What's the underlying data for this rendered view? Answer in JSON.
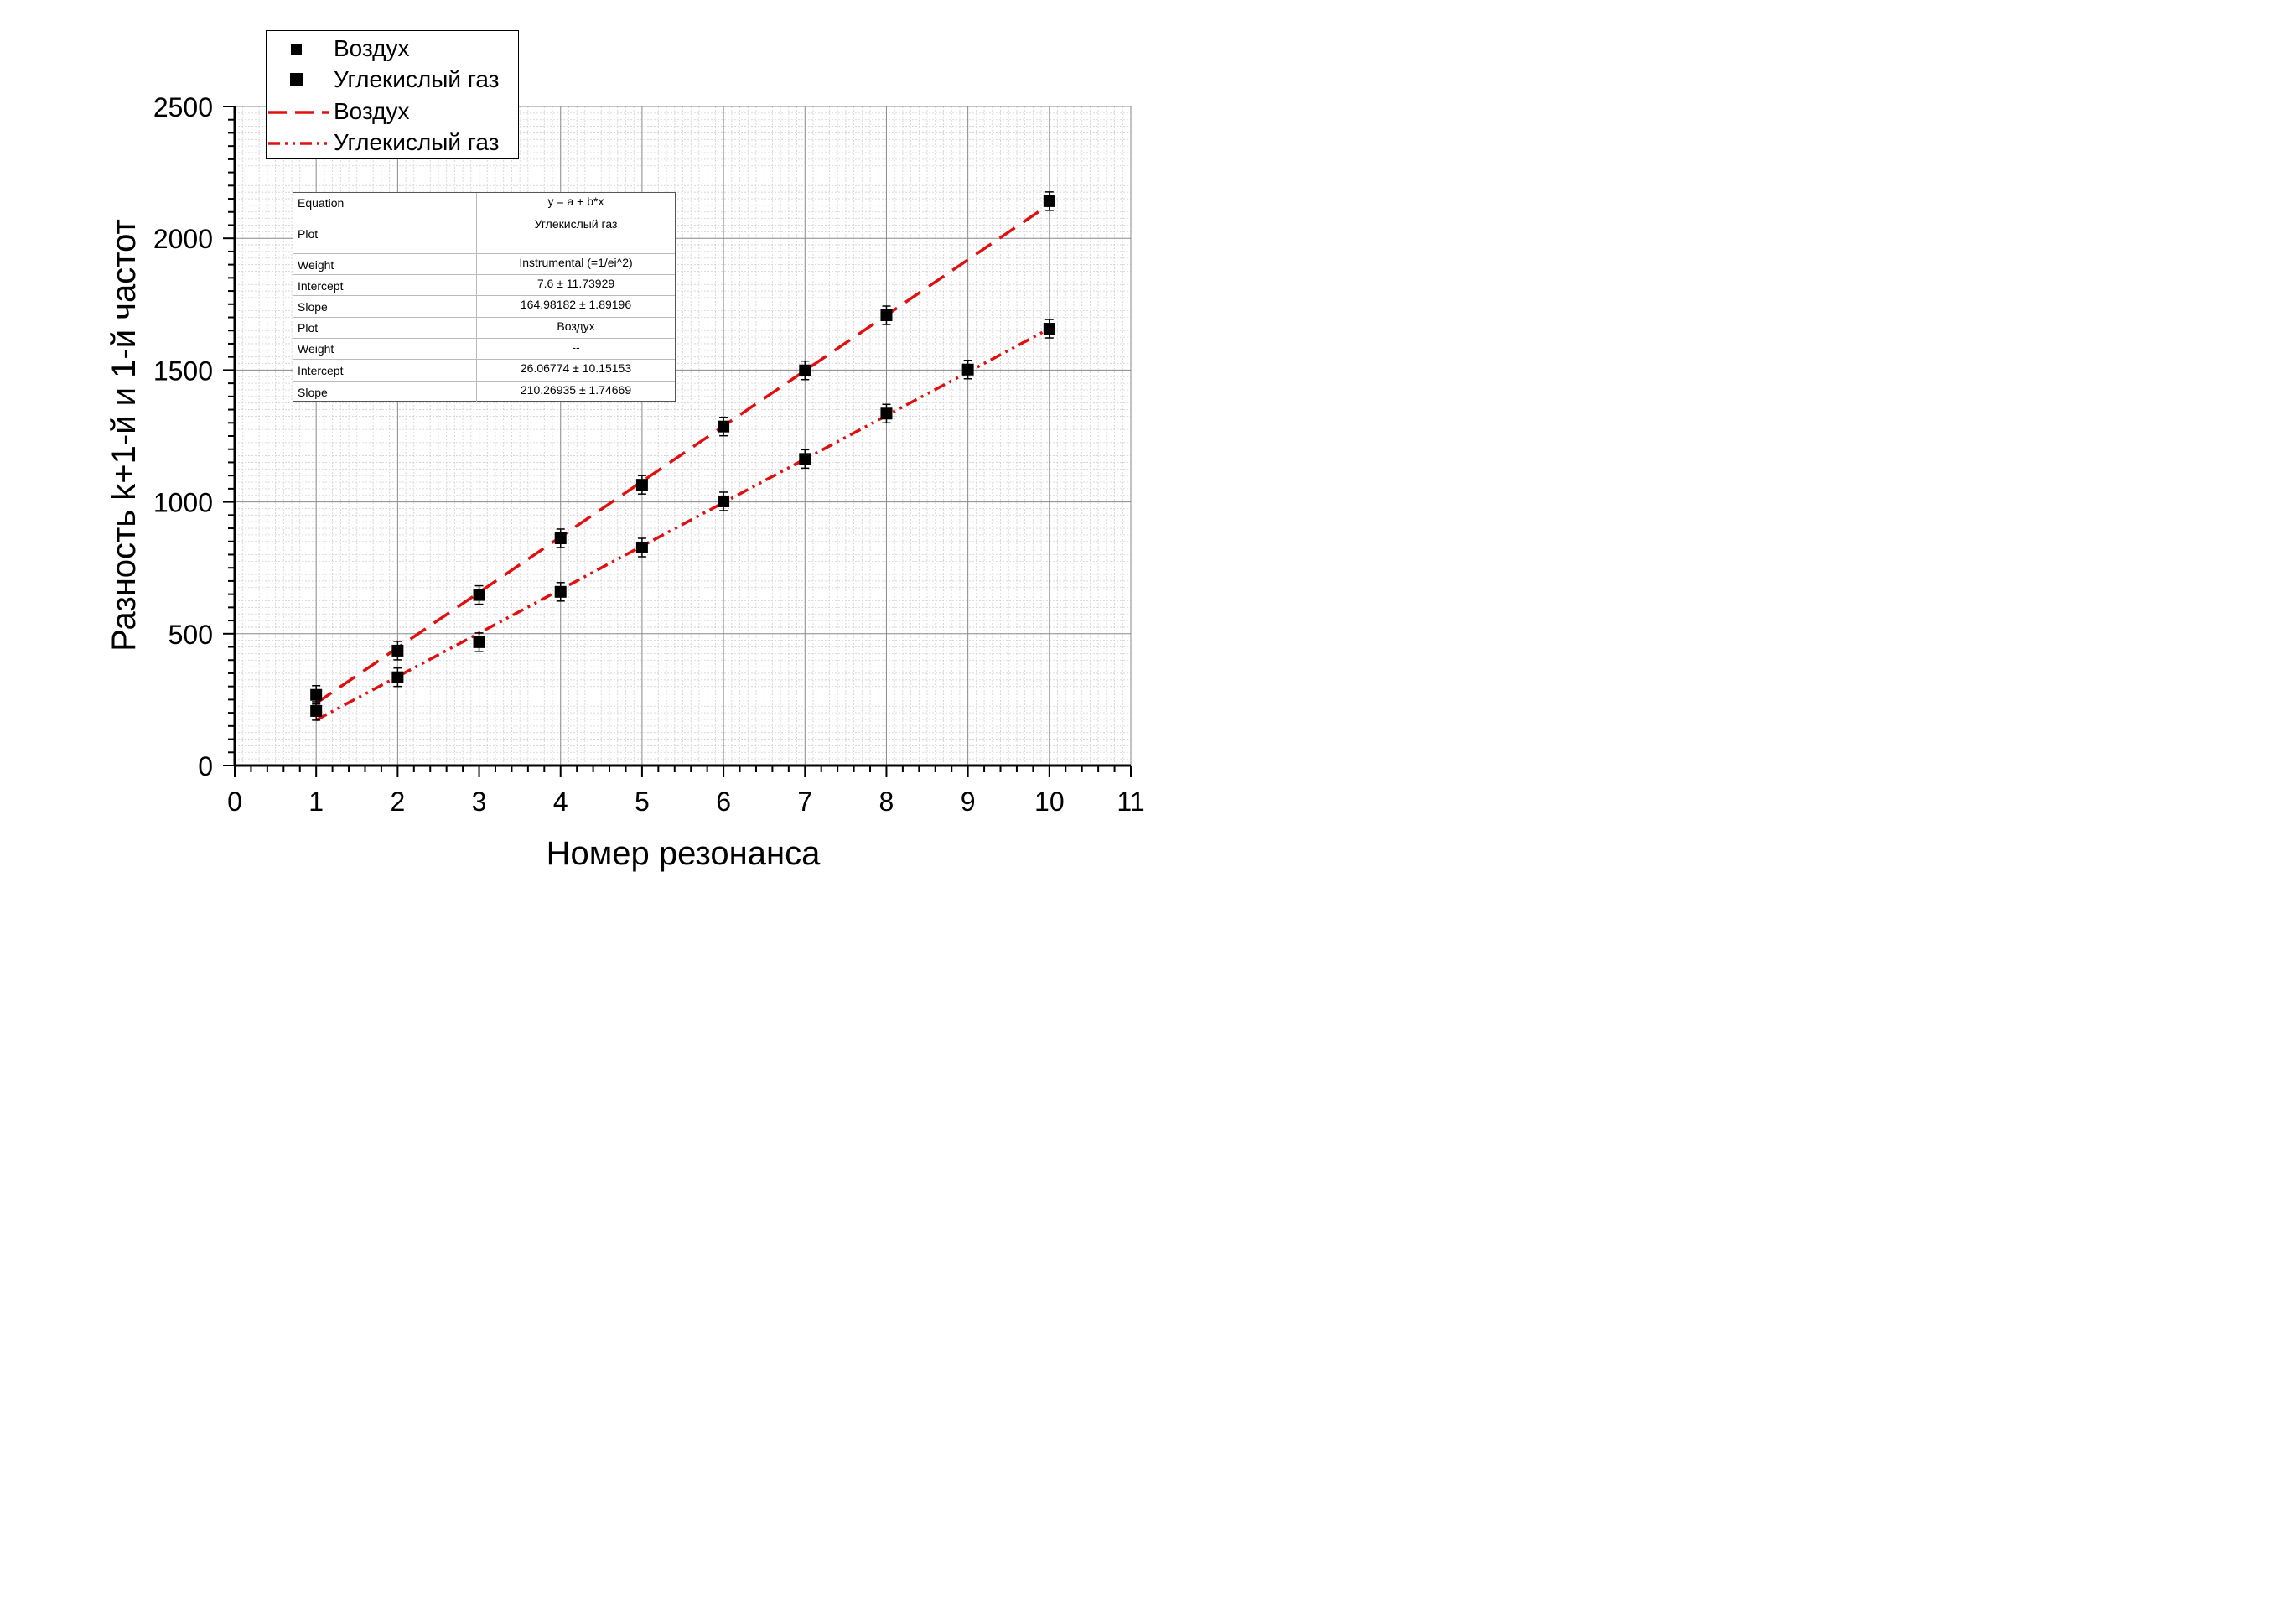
{
  "chart_data": {
    "type": "scatter",
    "xlabel": "Номер резонанса",
    "ylabel": "Разность k+1-й и 1-й частот",
    "xlim": [
      0,
      11
    ],
    "ylim": [
      0,
      2500
    ],
    "x_ticks": [
      "0",
      "1",
      "2",
      "3",
      "4",
      "5",
      "6",
      "7",
      "8",
      "9",
      "10",
      "11"
    ],
    "y_ticks": [
      "0",
      "500",
      "1000",
      "1500",
      "2000",
      "2500"
    ],
    "grid": true,
    "legend_position": "top-left, outside plot area",
    "series": [
      {
        "name": "Воздух",
        "kind": "points",
        "marker": "square",
        "color": "#000000",
        "x": [
          1,
          2,
          3,
          4,
          5,
          6,
          7,
          8,
          10
        ],
        "y": [
          268,
          436,
          647,
          862,
          1065,
          1286,
          1499,
          1708,
          2141
        ]
      },
      {
        "name": "Углекислый газ",
        "kind": "points",
        "marker": "square",
        "color": "#000000",
        "x": [
          1,
          2,
          3,
          4,
          5,
          6,
          7,
          8,
          9,
          10
        ],
        "y": [
          207,
          335,
          468,
          659,
          827,
          1002,
          1163,
          1335,
          1502,
          1657
        ]
      },
      {
        "name": "Воздух",
        "kind": "fit-line",
        "line_style": "dash",
        "color": "#e01010",
        "x_range": [
          1,
          10
        ],
        "intercept": 26.06774,
        "slope": 210.26935
      },
      {
        "name": "Углекислый газ",
        "kind": "fit-line",
        "line_style": "dash-dot-dot",
        "color": "#e01010",
        "x_range": [
          1,
          10
        ],
        "intercept": 7.6,
        "slope": 164.98182
      }
    ],
    "fit_table": [
      {
        "label": "Equation",
        "value": "y = a + b*x"
      },
      {
        "label": "Plot",
        "value": "Углекислый газ"
      },
      {
        "label": "Weight",
        "value": "Instrumental (=1/ei^2)"
      },
      {
        "label": "Intercept",
        "value": "7.6 ± 11.73929"
      },
      {
        "label": "Slope",
        "value": "164.98182 ± 1.89196"
      },
      {
        "label": "Plot",
        "value": "Воздух"
      },
      {
        "label": "Weight",
        "value": "--"
      },
      {
        "label": "Intercept",
        "value": "26.06774 ± 10.15153"
      },
      {
        "label": "Slope",
        "value": "210.26935 ± 1.74669"
      }
    ]
  }
}
